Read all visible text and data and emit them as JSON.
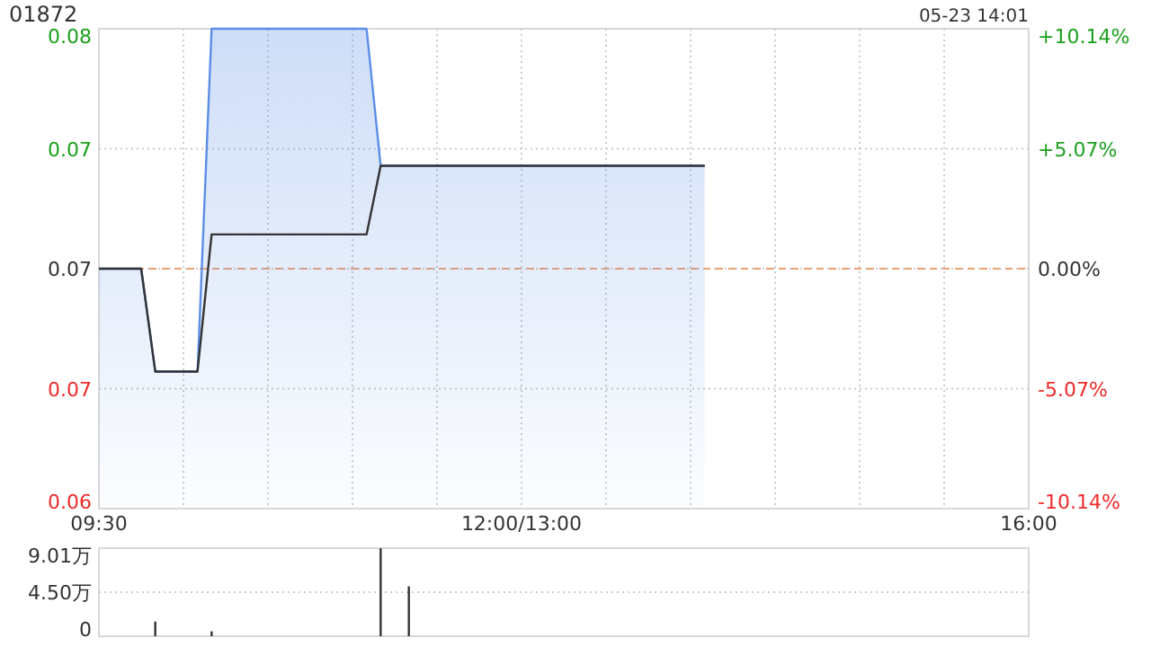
{
  "chart_data": [
    {
      "type": "line",
      "title": "01872",
      "annotations": [
        "05-23 14:01"
      ],
      "categories": [
        "09:30",
        null,
        null,
        null,
        null,
        null,
        null,
        null,
        null,
        null,
        null,
        null,
        null,
        null,
        null,
        null,
        null,
        null,
        null,
        null,
        null,
        null,
        null,
        null,
        null,
        null,
        null,
        null,
        null,
        null,
        "12:00/13:00",
        null,
        null,
        null,
        null,
        null,
        null,
        null,
        null,
        null,
        null,
        null,
        null,
        null,
        null,
        null,
        null,
        null,
        null,
        null,
        null,
        null,
        null,
        null,
        null,
        null,
        null,
        null,
        null,
        null,
        null,
        null,
        null,
        null,
        null,
        null,
        "16:00"
      ],
      "ylim": [
        0.062,
        0.076
      ],
      "y2lim": [
        -10.14,
        10.14
      ],
      "yticks": [
        {
          "value": 0.062,
          "label": "0.06"
        },
        {
          "value": 0.0655,
          "label": "0.07"
        },
        {
          "value": 0.069,
          "label": "0.07"
        },
        {
          "value": 0.0725,
          "label": "0.07"
        },
        {
          "value": 0.076,
          "label": "0.08"
        }
      ],
      "y2ticks": [
        {
          "value": -10.14,
          "label": "-10.14%"
        },
        {
          "value": -5.07,
          "label": "-5.07%"
        },
        {
          "value": 0,
          "label": "0.00%"
        },
        {
          "value": 5.07,
          "label": "+5.07%"
        },
        {
          "value": 10.14,
          "label": "+10.14%"
        }
      ],
      "grid": true,
      "ref_lines": [
        {
          "axis": "y",
          "value": 0.069,
          "color": "#f0a070",
          "line_style": "dashed"
        }
      ],
      "series": [
        {
          "type": "area",
          "color": "#5b8ee6",
          "values": [
            0.069,
            0.069,
            0.069,
            0.069,
            0.066,
            0.066,
            0.066,
            0.066,
            0.076,
            0.076,
            0.076,
            0.076,
            0.076,
            0.076,
            0.076,
            0.076,
            0.076,
            0.076,
            0.076,
            0.076,
            0.072,
            0.072,
            0.072,
            0.072,
            0.072,
            0.072,
            0.072,
            0.072,
            0.072,
            0.072,
            0.072,
            0.072,
            0.072,
            0.072,
            0.072,
            0.072,
            0.072,
            0.072,
            0.072,
            0.072,
            0.072,
            0.072,
            0.072,
            0.072,
            null,
            null,
            null,
            null,
            null,
            null,
            null,
            null,
            null,
            null,
            null,
            null,
            null,
            null,
            null,
            null,
            null,
            null,
            null,
            null,
            null,
            null,
            null
          ]
        },
        {
          "type": "line",
          "color": "#333333",
          "values": [
            0.069,
            0.069,
            0.069,
            0.069,
            0.066,
            0.066,
            0.066,
            0.066,
            0.07,
            0.07,
            0.07,
            0.07,
            0.07,
            0.07,
            0.07,
            0.07,
            0.07,
            0.07,
            0.07,
            0.07,
            0.072,
            0.072,
            0.072,
            0.072,
            0.072,
            0.072,
            0.072,
            0.072,
            0.072,
            0.072,
            0.072,
            0.072,
            0.072,
            0.072,
            0.072,
            0.072,
            0.072,
            0.072,
            0.072,
            0.072,
            0.072,
            0.072,
            0.072,
            0.072,
            null,
            null,
            null,
            null,
            null,
            null,
            null,
            null,
            null,
            null,
            null,
            null,
            null,
            null,
            null,
            null,
            null,
            null,
            null,
            null,
            null,
            null,
            null
          ]
        }
      ]
    },
    {
      "type": "bar",
      "ylim": [
        0,
        9.01
      ],
      "yticks": [
        0,
        {
          "value": 4.5,
          "label": "4.50万"
        },
        {
          "value": 9.01,
          "label": "9.01万"
        }
      ],
      "grid": "y",
      "tick_labels": "y",
      "values": [
        null,
        null,
        null,
        null,
        1.5,
        null,
        null,
        null,
        0.5,
        null,
        null,
        null,
        null,
        null,
        null,
        null,
        null,
        null,
        null,
        null,
        9.0,
        null,
        5.1,
        null,
        null,
        null,
        null,
        null,
        null,
        null,
        null,
        null,
        null,
        null,
        null,
        null,
        null,
        null,
        null,
        null,
        null,
        null,
        null,
        null,
        null,
        null,
        null,
        null,
        null,
        null,
        null,
        null,
        null,
        null,
        null,
        null,
        null,
        null,
        null,
        null,
        null,
        null,
        null,
        null,
        null,
        null,
        null
      ],
      "color": "#333333"
    }
  ]
}
